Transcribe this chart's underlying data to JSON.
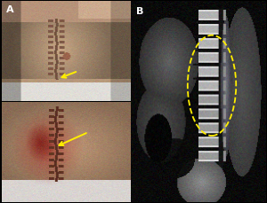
{
  "figure_width": 3.0,
  "figure_height": 2.29,
  "dpi": 100,
  "bg_color": "#000000",
  "label_A_color": "#ffffff",
  "label_B_color": "#ffffff",
  "label_fontsize": 8,
  "arrow_color": "#ffee00",
  "circle_color": "#ffee00"
}
